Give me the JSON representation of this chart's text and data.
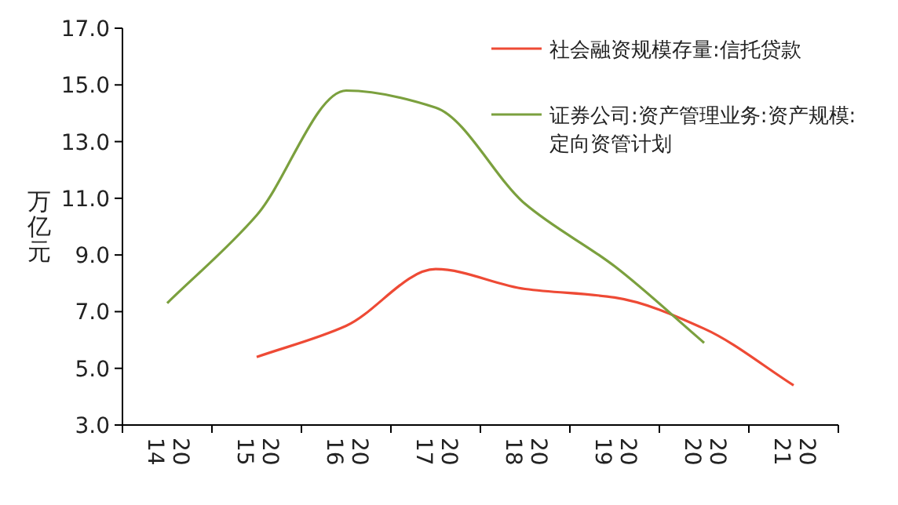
{
  "chart_data": {
    "type": "line",
    "ylabel": "万亿元",
    "categories": [
      "2014",
      "2015",
      "2016",
      "2017",
      "2018",
      "2019",
      "2020",
      "2021"
    ],
    "ylim": [
      3.0,
      17.0
    ],
    "yticks": [
      {
        "value": 3,
        "label": "3.0"
      },
      {
        "value": 5,
        "label": "5.0"
      },
      {
        "value": 7,
        "label": "7.0"
      },
      {
        "value": 9,
        "label": "9.0"
      },
      {
        "value": 11,
        "label": "11.0"
      },
      {
        "value": 13,
        "label": "13.0"
      },
      {
        "value": 15,
        "label": "15.0"
      },
      {
        "value": 17,
        "label": "17.0"
      }
    ],
    "legend": "top right",
    "grid": false,
    "series": [
      {
        "name": "社会融资规模存量:信托贷款",
        "color": "#ee4a35",
        "values": [
          null,
          5.4,
          6.5,
          8.5,
          7.8,
          7.5,
          6.4,
          4.4
        ]
      },
      {
        "name": "证券公司:资产管理业务:资产规模:定向资管计划",
        "color": "#7ba03e",
        "values": [
          7.3,
          10.4,
          14.8,
          14.2,
          10.8,
          8.6,
          5.9,
          null
        ]
      }
    ]
  }
}
